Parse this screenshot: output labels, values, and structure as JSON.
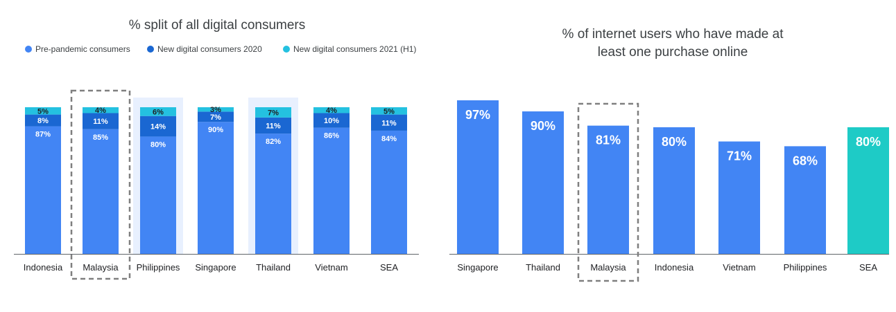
{
  "colors": {
    "pre": "#4285f4",
    "new2020": "#1a67d2",
    "new2021": "#24c1e0",
    "bar": "#4285f4",
    "sea": "#1ecbc6",
    "highlight_bg": "#e8f0fe"
  },
  "chart_data": [
    {
      "type": "bar",
      "stacked": true,
      "title": "% split of all digital consumers",
      "categories": [
        "Indonesia",
        "Malaysia",
        "Philippines",
        "Singapore",
        "Thailand",
        "Vietnam",
        "SEA"
      ],
      "series": [
        {
          "name": "Pre-pandemic consumers",
          "color_key": "pre",
          "values": [
            87,
            85,
            80,
            90,
            82,
            86,
            84
          ]
        },
        {
          "name": "New digital consumers 2020",
          "color_key": "new2020",
          "values": [
            8,
            11,
            14,
            7,
            11,
            10,
            11
          ]
        },
        {
          "name": "New digital consumers 2021 (H1)",
          "color_key": "new2021",
          "values": [
            5,
            4,
            6,
            3,
            7,
            4,
            5
          ]
        }
      ],
      "labels": [
        [
          "87%",
          "8%",
          "5%"
        ],
        [
          "85%",
          "11%",
          "4%"
        ],
        [
          "80%",
          "14%",
          "6%"
        ],
        [
          "90%",
          "7%",
          "3%"
        ],
        [
          "82%",
          "11%",
          "7%"
        ],
        [
          "86%",
          "10%",
          "4%"
        ],
        [
          "84%",
          "11%",
          "5%"
        ]
      ],
      "shaded_categories": [
        "Philippines",
        "Thailand"
      ],
      "highlighted_category": "Malaysia",
      "ylim": [
        0,
        100
      ],
      "legend_position": "top"
    },
    {
      "type": "bar",
      "title_lines": [
        "% of internet users who have made at",
        "least one purchase online"
      ],
      "categories": [
        "Singapore",
        "Thailand",
        "Malaysia",
        "Indonesia",
        "Vietnam",
        "Philippines",
        "SEA"
      ],
      "values": [
        97,
        90,
        81,
        80,
        71,
        68,
        80
      ],
      "labels": [
        "97%",
        "90%",
        "81%",
        "80%",
        "71%",
        "68%",
        "80%"
      ],
      "highlighted_category": "Malaysia",
      "accent_category": "SEA",
      "ylim": [
        0,
        100
      ]
    }
  ]
}
